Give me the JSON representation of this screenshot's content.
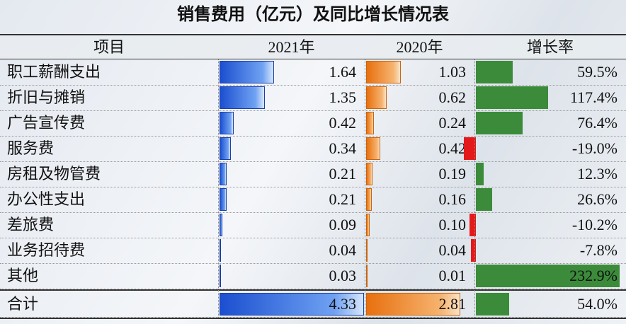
{
  "title": "销售费用（亿元）及同比增长情况表",
  "table": {
    "header": [
      "项目",
      "2021年",
      "2020年",
      "增长率"
    ],
    "rows": [
      {
        "item": "职工薪酬支出",
        "v2021": 1.64,
        "v2021_label": "1.64",
        "v2020": 1.03,
        "v2020_label": "1.03",
        "growth": 59.5,
        "growth_label": "59.5%"
      },
      {
        "item": "折旧与摊销",
        "v2021": 1.35,
        "v2021_label": "1.35",
        "v2020": 0.62,
        "v2020_label": "0.62",
        "growth": 117.4,
        "growth_label": "117.4%"
      },
      {
        "item": "广告宣传费",
        "v2021": 0.42,
        "v2021_label": "0.42",
        "v2020": 0.24,
        "v2020_label": "0.24",
        "growth": 76.4,
        "growth_label": "76.4%"
      },
      {
        "item": "服务费",
        "v2021": 0.34,
        "v2021_label": "0.34",
        "v2020": 0.42,
        "v2020_label": "0.42",
        "growth": -19.0,
        "growth_label": "-19.0%"
      },
      {
        "item": "房租及物管费",
        "v2021": 0.21,
        "v2021_label": "0.21",
        "v2020": 0.19,
        "v2020_label": "0.19",
        "growth": 12.3,
        "growth_label": "12.3%"
      },
      {
        "item": "办公性支出",
        "v2021": 0.21,
        "v2021_label": "0.21",
        "v2020": 0.16,
        "v2020_label": "0.16",
        "growth": 26.6,
        "growth_label": "26.6%"
      },
      {
        "item": "差旅费",
        "v2021": 0.09,
        "v2021_label": "0.09",
        "v2020": 0.1,
        "v2020_label": "0.10",
        "growth": -10.2,
        "growth_label": "-10.2%"
      },
      {
        "item": "业务招待费",
        "v2021": 0.04,
        "v2021_label": "0.04",
        "v2020": 0.04,
        "v2020_label": "0.04",
        "growth": -7.8,
        "growth_label": "-7.8%"
      },
      {
        "item": "其他",
        "v2021": 0.03,
        "v2021_label": "0.03",
        "v2020": 0.01,
        "v2020_label": "0.01",
        "growth": 232.9,
        "growth_label": "232.9%"
      }
    ],
    "total": {
      "item": "合计",
      "v2021": 4.33,
      "v2021_label": "4.33",
      "v2020": 2.81,
      "v2020_label": "2.81",
      "growth": 54.0,
      "growth_label": "54.0%"
    }
  }
}
